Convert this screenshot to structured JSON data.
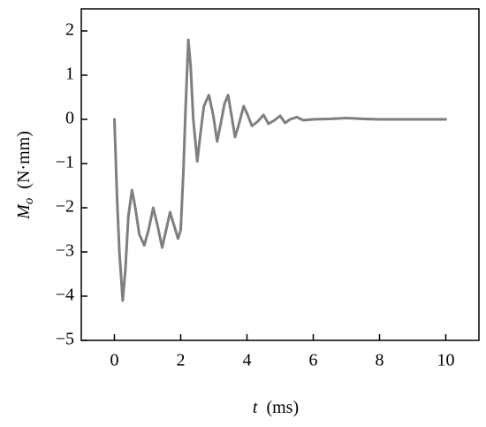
{
  "chart_data": {
    "type": "line",
    "xlabel": {
      "symbol": "t",
      "unit": "(ms)"
    },
    "ylabel": {
      "symbol": "M",
      "subscript": "o",
      "unit": "(N·mm)"
    },
    "xlim": [
      -1,
      11
    ],
    "xticks": [
      0,
      2,
      4,
      6,
      8,
      10
    ],
    "ylim": [
      -5,
      2.5
    ],
    "yticks": [
      {
        "value": -5,
        "label": "−5"
      },
      {
        "value": -4,
        "label": "−4"
      },
      {
        "value": -3,
        "label": "−3"
      },
      {
        "value": -2,
        "label": "−2"
      },
      {
        "value": -1,
        "label": "−1"
      },
      0,
      1,
      2
    ],
    "grid": false,
    "series": [
      {
        "color": "#7f7f7f",
        "x": [
          0,
          0.08,
          0.15,
          0.25,
          0.33,
          0.42,
          0.53,
          0.63,
          0.75,
          0.9,
          1.03,
          1.17,
          1.3,
          1.44,
          1.56,
          1.68,
          1.8,
          1.92,
          2.0,
          2.08,
          2.15,
          2.23,
          2.3,
          2.38,
          2.5,
          2.6,
          2.7,
          2.85,
          2.98,
          3.1,
          3.22,
          3.32,
          3.43,
          3.53,
          3.64,
          3.76,
          3.9,
          4.02,
          4.15,
          4.32,
          4.5,
          4.65,
          4.83,
          5.0,
          5.15,
          5.3,
          5.5,
          5.7,
          6.0,
          6.5,
          7.0,
          7.5,
          8.0,
          9.0,
          10.0
        ],
        "values": [
          0,
          -1.8,
          -3.0,
          -4.1,
          -3.4,
          -2.2,
          -1.6,
          -2.0,
          -2.6,
          -2.85,
          -2.5,
          -2.0,
          -2.4,
          -2.9,
          -2.5,
          -2.1,
          -2.4,
          -2.7,
          -2.5,
          -1.2,
          0.3,
          1.8,
          1.2,
          0.0,
          -0.95,
          -0.3,
          0.3,
          0.55,
          0.1,
          -0.5,
          -0.05,
          0.35,
          0.55,
          0.1,
          -0.4,
          -0.1,
          0.3,
          0.1,
          -0.15,
          -0.05,
          0.1,
          -0.1,
          -0.02,
          0.08,
          -0.08,
          0.0,
          0.05,
          -0.02,
          0.0,
          0.01,
          0.03,
          0.01,
          0.0,
          0.0,
          0.0
        ]
      }
    ]
  }
}
